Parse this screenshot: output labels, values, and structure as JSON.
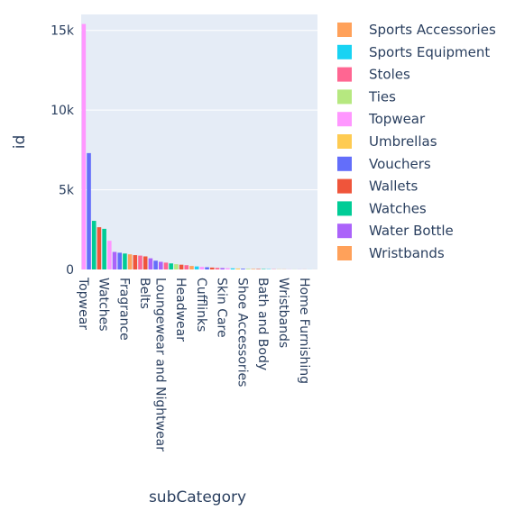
{
  "chart_data": {
    "type": "bar",
    "title": "",
    "xlabel": "subCategory",
    "ylabel": "id",
    "ylim": [
      0,
      16000
    ],
    "yticks": [
      {
        "value": 0,
        "label": "0"
      },
      {
        "value": 5000,
        "label": "5k"
      },
      {
        "value": 10000,
        "label": "10k"
      },
      {
        "value": 15000,
        "label": "15k"
      }
    ],
    "x_tick_labels": [
      "Topwear",
      "Watches",
      "Fragrance",
      "Belts",
      "Loungewear and Nightwear",
      "Headwear",
      "Cufflinks",
      "Skin Care",
      "Shoe Accessories",
      "Bath and Body",
      "Wristbands",
      "Home Furnishing"
    ],
    "grid": true,
    "legend_position": "right",
    "background": "#e5ecf6",
    "bars": [
      {
        "category": "Topwear",
        "value": 15400,
        "color": "#FF97FF"
      },
      {
        "category": "",
        "value": 7300,
        "color": "#636EFA"
      },
      {
        "category": "",
        "value": 3050,
        "color": "#00CC96"
      },
      {
        "category": "",
        "value": 2650,
        "color": "#EF553B"
      },
      {
        "category": "Watches",
        "value": 2550,
        "color": "#00CC96"
      },
      {
        "category": "",
        "value": 1800,
        "color": "#FF97FF"
      },
      {
        "category": "",
        "value": 1100,
        "color": "#AB63FA"
      },
      {
        "category": "",
        "value": 1050,
        "color": "#636EFA"
      },
      {
        "category": "Fragrance",
        "value": 1000,
        "color": "#00CC96"
      },
      {
        "category": "",
        "value": 950,
        "color": "#FFA15A"
      },
      {
        "category": "",
        "value": 900,
        "color": "#EF553B"
      },
      {
        "category": "",
        "value": 870,
        "color": "#FF6692"
      },
      {
        "category": "Belts",
        "value": 820,
        "color": "#EF553B"
      },
      {
        "category": "",
        "value": 700,
        "color": "#AB63FA"
      },
      {
        "category": "",
        "value": 550,
        "color": "#636EFA"
      },
      {
        "category": "Loungewear and Nightwear",
        "value": 480,
        "color": "#AB63FA"
      },
      {
        "category": "",
        "value": 430,
        "color": "#FF6692"
      },
      {
        "category": "",
        "value": 380,
        "color": "#00CC96"
      },
      {
        "category": "",
        "value": 330,
        "color": "#B6E880"
      },
      {
        "category": "Headwear",
        "value": 300,
        "color": "#EF553B"
      },
      {
        "category": "",
        "value": 270,
        "color": "#FF6692"
      },
      {
        "category": "",
        "value": 220,
        "color": "#FFA15A"
      },
      {
        "category": "",
        "value": 190,
        "color": "#19D3F3"
      },
      {
        "category": "Cufflinks",
        "value": 160,
        "color": "#FF97FF"
      },
      {
        "category": "",
        "value": 140,
        "color": "#636EFA"
      },
      {
        "category": "",
        "value": 120,
        "color": "#EF553B"
      },
      {
        "category": "",
        "value": 100,
        "color": "#FF6692"
      },
      {
        "category": "Skin Care",
        "value": 90,
        "color": "#AB63FA"
      },
      {
        "category": "",
        "value": 80,
        "color": "#FF97FF"
      },
      {
        "category": "",
        "value": 70,
        "color": "#19D3F3"
      },
      {
        "category": "",
        "value": 60,
        "color": "#FECB52"
      },
      {
        "category": "Shoe Accessories",
        "value": 50,
        "color": "#636EFA"
      },
      {
        "category": "",
        "value": 40,
        "color": "#B6E880"
      },
      {
        "category": "",
        "value": 35,
        "color": "#FFA15A"
      },
      {
        "category": "",
        "value": 30,
        "color": "#EF553B"
      },
      {
        "category": "Bath and Body",
        "value": 25,
        "color": "#00CC96"
      },
      {
        "category": "",
        "value": 20,
        "color": "#19D3F3"
      },
      {
        "category": "",
        "value": 15,
        "color": "#FF6692"
      },
      {
        "category": "",
        "value": 12,
        "color": "#FECB52"
      },
      {
        "category": "Wristbands",
        "value": 10,
        "color": "#FFA15A"
      },
      {
        "category": "",
        "value": 8,
        "color": "#FF97FF"
      },
      {
        "category": "",
        "value": 6,
        "color": "#B6E880"
      },
      {
        "category": "",
        "value": 5,
        "color": "#AB63FA"
      },
      {
        "category": "Home Furnishing",
        "value": 4,
        "color": "#EF553B"
      },
      {
        "category": "",
        "value": 3,
        "color": "#19D3F3"
      },
      {
        "category": "",
        "value": 2,
        "color": "#FFA15A"
      }
    ]
  },
  "legend": [
    {
      "name": "Sports Accessories",
      "color": "#FFA15A"
    },
    {
      "name": "Sports Equipment",
      "color": "#19D3F3"
    },
    {
      "name": "Stoles",
      "color": "#FF6692"
    },
    {
      "name": "Ties",
      "color": "#B6E880"
    },
    {
      "name": "Topwear",
      "color": "#FF97FF"
    },
    {
      "name": "Umbrellas",
      "color": "#FECB52"
    },
    {
      "name": "Vouchers",
      "color": "#636EFA"
    },
    {
      "name": "Wallets",
      "color": "#EF553B"
    },
    {
      "name": "Watches",
      "color": "#00CC96"
    },
    {
      "name": "Water Bottle",
      "color": "#AB63FA"
    },
    {
      "name": "Wristbands",
      "color": "#FFA15A"
    }
  ]
}
